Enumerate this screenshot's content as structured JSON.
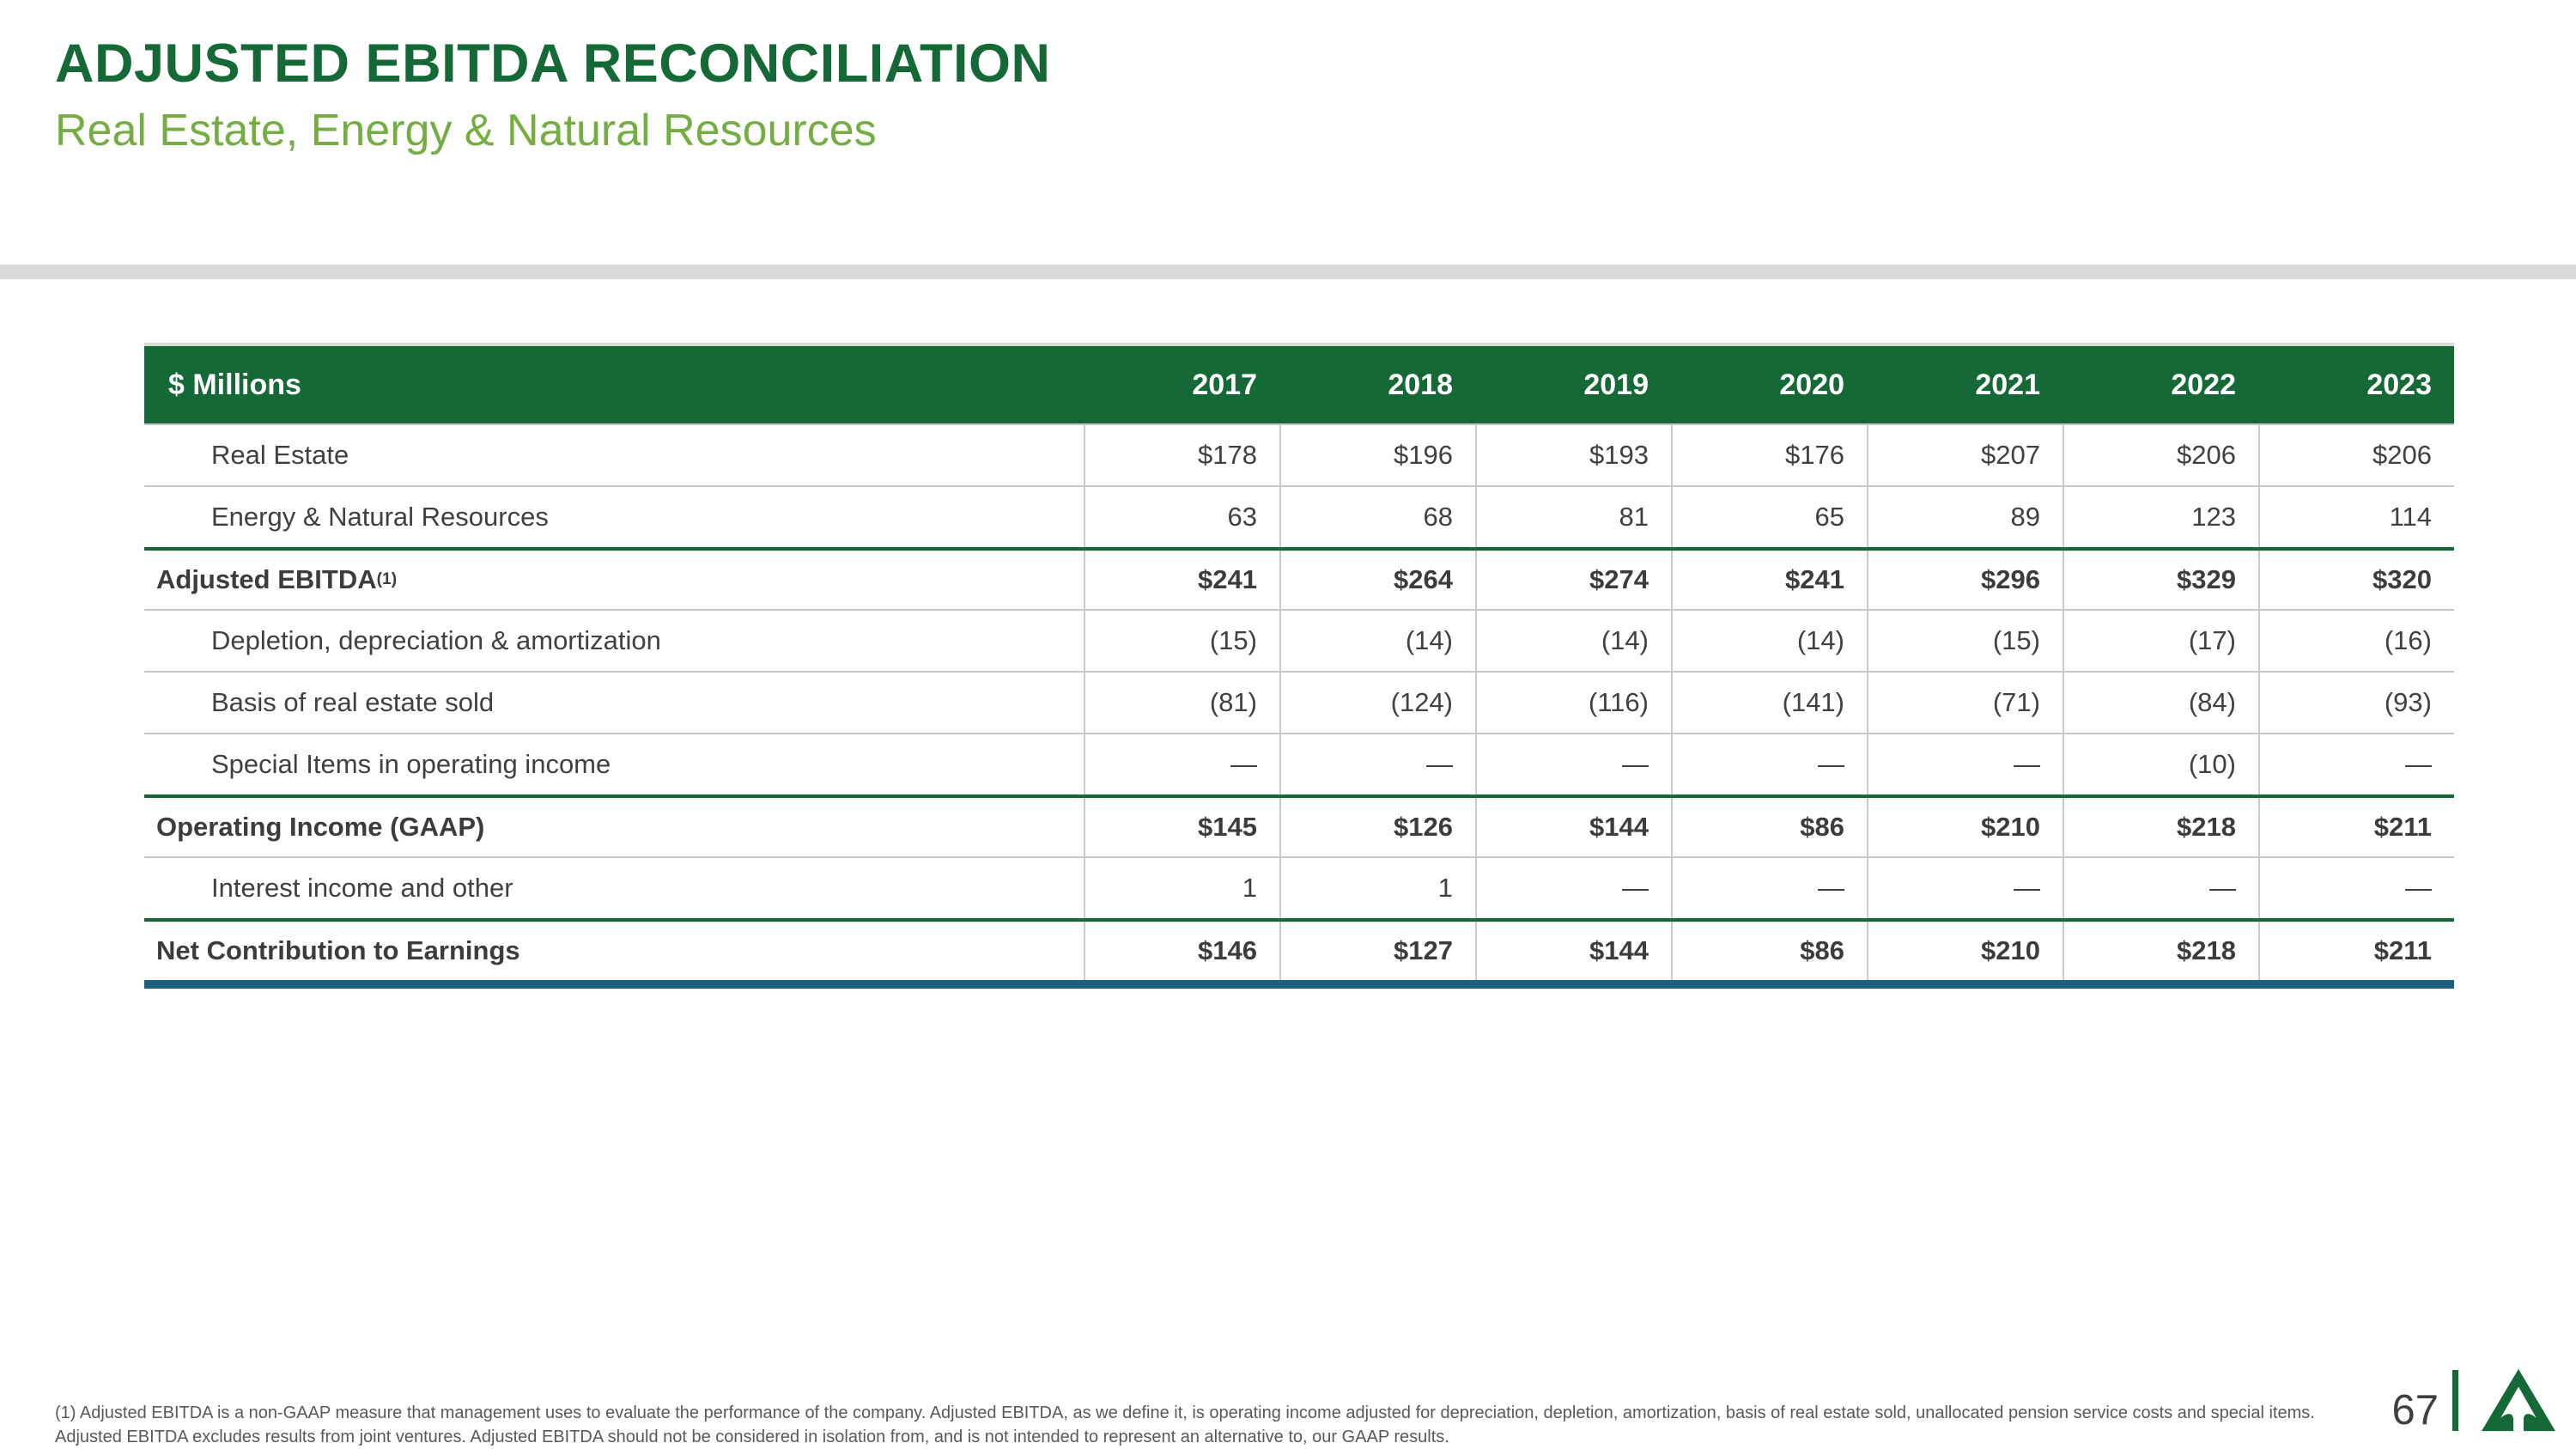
{
  "slide": {
    "title": "ADJUSTED EBITDA RECONCILIATION",
    "subtitle": "Real Estate, Energy & Natural Resources",
    "page_number": "67"
  },
  "colors": {
    "dark_green": "#156937",
    "light_green": "#74AD41",
    "teal_rule": "#1D5F7E",
    "divider_gray": "#D9D9D9",
    "table_text": "#404040"
  },
  "icons": {
    "logo": "weyerhaeuser-triangle-tree-logo"
  },
  "table": {
    "unit_label": "$ Millions",
    "years": [
      "2017",
      "2018",
      "2019",
      "2020",
      "2021",
      "2022",
      "2023"
    ],
    "rows": [
      {
        "label": "Real Estate",
        "bold": false,
        "topline": false,
        "values": [
          "$178",
          "$196",
          "$193",
          "$176",
          "$207",
          "$206",
          "$206"
        ]
      },
      {
        "label": "Energy & Natural Resources",
        "bold": false,
        "topline": false,
        "values": [
          "63",
          "68",
          "81",
          "65",
          "89",
          "123",
          "114"
        ]
      },
      {
        "label": "Adjusted EBITDA",
        "sup": "(1)",
        "bold": true,
        "topline": true,
        "values": [
          "$241",
          "$264",
          "$274",
          "$241",
          "$296",
          "$329",
          "$320"
        ]
      },
      {
        "label": "Depletion, depreciation & amortization",
        "bold": false,
        "topline": false,
        "values": [
          "(15)",
          "(14)",
          "(14)",
          "(14)",
          "(15)",
          "(17)",
          "(16)"
        ]
      },
      {
        "label": "Basis of real estate sold",
        "bold": false,
        "topline": false,
        "values": [
          "(81)",
          "(124)",
          "(116)",
          "(141)",
          "(71)",
          "(84)",
          "(93)"
        ]
      },
      {
        "label": "Special Items in operating income",
        "bold": false,
        "topline": false,
        "values": [
          "—",
          "—",
          "—",
          "—",
          "—",
          "(10)",
          "—"
        ]
      },
      {
        "label": "Operating Income (GAAP)",
        "bold": true,
        "topline": true,
        "values": [
          "$145",
          "$126",
          "$144",
          "$86",
          "$210",
          "$218",
          "$211"
        ]
      },
      {
        "label": "Interest income and other",
        "bold": false,
        "topline": false,
        "values": [
          "1",
          "1",
          "—",
          "—",
          "—",
          "—",
          "—"
        ]
      },
      {
        "label": "Net Contribution to Earnings",
        "bold": true,
        "topline": true,
        "values": [
          "$146",
          "$127",
          "$144",
          "$86",
          "$210",
          "$218",
          "$211"
        ]
      }
    ]
  },
  "footnote": "(1) Adjusted EBITDA is a non-GAAP measure that management uses to evaluate the performance of the company. Adjusted EBITDA, as we define it, is operating income adjusted for depreciation, depletion, amortization, basis of real estate sold, unallocated pension service costs and special items. Adjusted EBITDA excludes results from joint ventures. Adjusted EBITDA should not be considered in isolation from, and is not intended to represent an alternative to, our GAAP results."
}
